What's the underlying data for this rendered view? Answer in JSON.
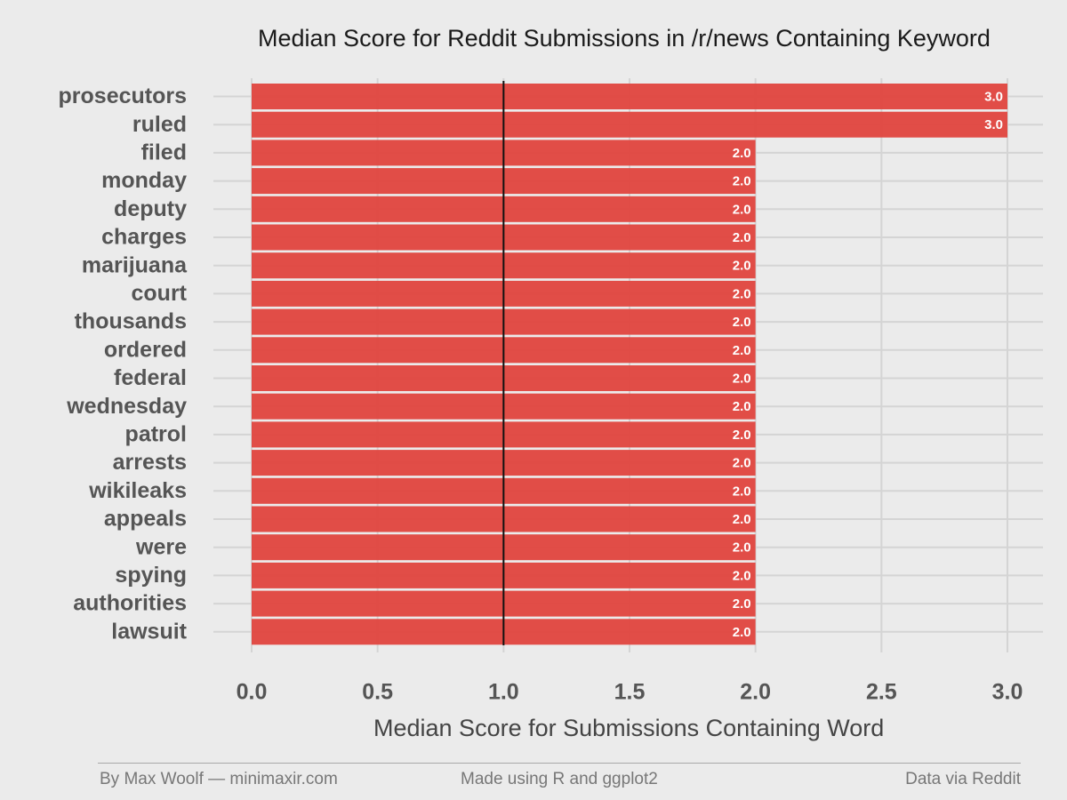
{
  "chart_data": {
    "type": "bar",
    "orientation": "horizontal",
    "title": "Median Score for Reddit Submissions in /r/news Containing Keyword",
    "xlabel": "Median Score for Submissions Containing Word",
    "ylabel": "",
    "categories": [
      "prosecutors",
      "ruled",
      "filed",
      "monday",
      "deputy",
      "charges",
      "marijuana",
      "court",
      "thousands",
      "ordered",
      "federal",
      "wednesday",
      "patrol",
      "arrests",
      "wikileaks",
      "appeals",
      "were",
      "spying",
      "authorities",
      "lawsuit"
    ],
    "values": [
      3.0,
      3.0,
      2.0,
      2.0,
      2.0,
      2.0,
      2.0,
      2.0,
      2.0,
      2.0,
      2.0,
      2.0,
      2.0,
      2.0,
      2.0,
      2.0,
      2.0,
      2.0,
      2.0,
      2.0
    ],
    "data_labels": [
      "3.0",
      "3.0",
      "2.0",
      "2.0",
      "2.0",
      "2.0",
      "2.0",
      "2.0",
      "2.0",
      "2.0",
      "2.0",
      "2.0",
      "2.0",
      "2.0",
      "2.0",
      "2.0",
      "2.0",
      "2.0",
      "2.0",
      "2.0"
    ],
    "xlim": [
      0,
      3
    ],
    "x_ticks": [
      "0.0",
      "0.5",
      "1.0",
      "1.5",
      "2.0",
      "2.5",
      "3.0"
    ],
    "reference_line": 1.0,
    "grid": true,
    "legend": "none",
    "bar_color": "#e0443e",
    "reference_line_color": "#111111"
  },
  "footer": {
    "left": "By Max Woolf — minimaxir.com",
    "center": "Made using R and ggplot2",
    "right": "Data via Reddit"
  }
}
